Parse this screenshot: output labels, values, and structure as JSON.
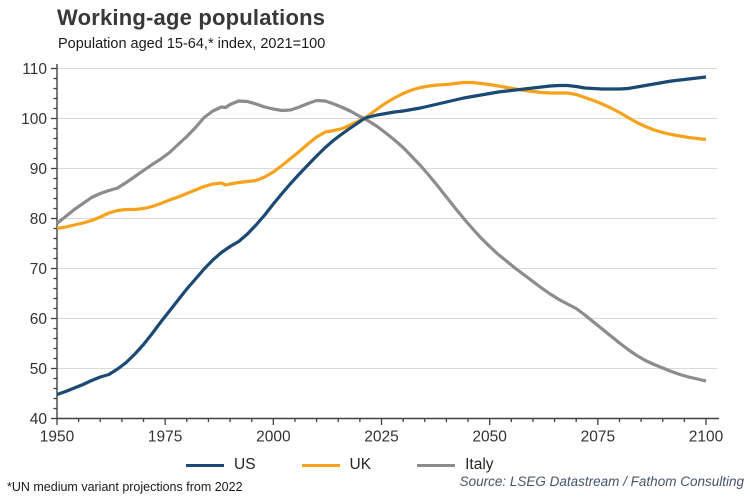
{
  "header": {
    "title": "Working-age populations",
    "subtitle": "Population aged 15-64,* index, 2021=100"
  },
  "footer": {
    "footnote": "*UN medium variant projections from 2022",
    "source": "Source: LSEG Datastream / Fathom Consulting"
  },
  "colors": {
    "us_line": "#1A4A73",
    "uk_line": "#F7A21B",
    "italy_line": "#8C8C8C",
    "grid": "#D9D9D9",
    "axis": "#404040",
    "tick_text": "#333333",
    "title_text": "#383838",
    "source_text": "#44546A"
  },
  "chart_data": {
    "type": "line",
    "title": "Working-age populations",
    "subtitle": "Population aged 15-64,* index, 2021=100",
    "xlabel": "",
    "ylabel": "",
    "xlim": [
      1950,
      2102
    ],
    "ylim": [
      40,
      110
    ],
    "x_ticks": [
      1950,
      1975,
      2000,
      2025,
      2050,
      2075,
      2100
    ],
    "x_minor_step": 5,
    "y_ticks": [
      40,
      50,
      60,
      70,
      80,
      90,
      100,
      110
    ],
    "y_minor_step": 2,
    "grid": "horizontal",
    "legend_position": "bottom",
    "series": [
      {
        "name": "US",
        "color": "#1A4A73",
        "points": [
          [
            1950,
            44.8
          ],
          [
            1952,
            45.4
          ],
          [
            1954,
            46.1
          ],
          [
            1956,
            46.8
          ],
          [
            1958,
            47.6
          ],
          [
            1960,
            48.3
          ],
          [
            1962,
            48.8
          ],
          [
            1964,
            49.9
          ],
          [
            1966,
            51.2
          ],
          [
            1968,
            52.9
          ],
          [
            1970,
            54.8
          ],
          [
            1972,
            57
          ],
          [
            1974,
            59.3
          ],
          [
            1976,
            61.5
          ],
          [
            1978,
            63.7
          ],
          [
            1980,
            65.9
          ],
          [
            1982,
            67.9
          ],
          [
            1984,
            69.9
          ],
          [
            1986,
            71.7
          ],
          [
            1988,
            73.2
          ],
          [
            1990,
            74.4
          ],
          [
            1992,
            75.4
          ],
          [
            1994,
            76.9
          ],
          [
            1996,
            78.7
          ],
          [
            1998,
            80.7
          ],
          [
            2000,
            82.9
          ],
          [
            2002,
            85
          ],
          [
            2004,
            87
          ],
          [
            2006,
            88.9
          ],
          [
            2008,
            90.7
          ],
          [
            2010,
            92.5
          ],
          [
            2012,
            94.2
          ],
          [
            2014,
            95.7
          ],
          [
            2016,
            97
          ],
          [
            2018,
            98.2
          ],
          [
            2020,
            99.4
          ],
          [
            2021,
            100
          ],
          [
            2022,
            100.3
          ],
          [
            2024,
            100.7
          ],
          [
            2026,
            101
          ],
          [
            2028,
            101.3
          ],
          [
            2030,
            101.5
          ],
          [
            2032,
            101.8
          ],
          [
            2034,
            102.1
          ],
          [
            2036,
            102.5
          ],
          [
            2038,
            102.9
          ],
          [
            2040,
            103.3
          ],
          [
            2042,
            103.7
          ],
          [
            2044,
            104.1
          ],
          [
            2046,
            104.4
          ],
          [
            2048,
            104.7
          ],
          [
            2050,
            105
          ],
          [
            2052,
            105.3
          ],
          [
            2054,
            105.5
          ],
          [
            2056,
            105.7
          ],
          [
            2058,
            105.9
          ],
          [
            2060,
            106.1
          ],
          [
            2062,
            106.3
          ],
          [
            2064,
            106.5
          ],
          [
            2066,
            106.6
          ],
          [
            2068,
            106.6
          ],
          [
            2070,
            106.4
          ],
          [
            2072,
            106.1
          ],
          [
            2074,
            106
          ],
          [
            2076,
            105.9
          ],
          [
            2078,
            105.9
          ],
          [
            2080,
            105.9
          ],
          [
            2082,
            106
          ],
          [
            2084,
            106.3
          ],
          [
            2086,
            106.6
          ],
          [
            2088,
            106.9
          ],
          [
            2090,
            107.2
          ],
          [
            2092,
            107.5
          ],
          [
            2094,
            107.7
          ],
          [
            2096,
            107.9
          ],
          [
            2098,
            108.1
          ],
          [
            2100,
            108.3
          ]
        ]
      },
      {
        "name": "UK",
        "color": "#F7A21B",
        "points": [
          [
            1950,
            78
          ],
          [
            1952,
            78.3
          ],
          [
            1954,
            78.7
          ],
          [
            1956,
            79.1
          ],
          [
            1958,
            79.6
          ],
          [
            1960,
            80.3
          ],
          [
            1962,
            81.1
          ],
          [
            1964,
            81.6
          ],
          [
            1966,
            81.8
          ],
          [
            1968,
            81.8
          ],
          [
            1970,
            82
          ],
          [
            1972,
            82.4
          ],
          [
            1974,
            83
          ],
          [
            1976,
            83.7
          ],
          [
            1978,
            84.3
          ],
          [
            1980,
            85
          ],
          [
            1982,
            85.7
          ],
          [
            1984,
            86.4
          ],
          [
            1986,
            86.9
          ],
          [
            1988,
            87.1
          ],
          [
            1989,
            86.7
          ],
          [
            1990,
            86.9
          ],
          [
            1992,
            87.2
          ],
          [
            1994,
            87.4
          ],
          [
            1996,
            87.6
          ],
          [
            1998,
            88.3
          ],
          [
            2000,
            89.3
          ],
          [
            2002,
            90.6
          ],
          [
            2004,
            92
          ],
          [
            2006,
            93.4
          ],
          [
            2008,
            94.9
          ],
          [
            2010,
            96.3
          ],
          [
            2012,
            97.3
          ],
          [
            2014,
            97.6
          ],
          [
            2016,
            98
          ],
          [
            2018,
            98.8
          ],
          [
            2020,
            99.6
          ],
          [
            2021,
            100
          ],
          [
            2022,
            100.6
          ],
          [
            2024,
            101.9
          ],
          [
            2026,
            103.1
          ],
          [
            2028,
            104.1
          ],
          [
            2030,
            105
          ],
          [
            2032,
            105.7
          ],
          [
            2034,
            106.2
          ],
          [
            2036,
            106.5
          ],
          [
            2038,
            106.7
          ],
          [
            2040,
            106.8
          ],
          [
            2042,
            107
          ],
          [
            2044,
            107.2
          ],
          [
            2046,
            107.2
          ],
          [
            2048,
            107
          ],
          [
            2050,
            106.8
          ],
          [
            2052,
            106.5
          ],
          [
            2054,
            106.2
          ],
          [
            2056,
            105.9
          ],
          [
            2058,
            105.6
          ],
          [
            2060,
            105.4
          ],
          [
            2062,
            105.2
          ],
          [
            2064,
            105.1
          ],
          [
            2066,
            105.1
          ],
          [
            2068,
            105.1
          ],
          [
            2070,
            104.8
          ],
          [
            2072,
            104.2
          ],
          [
            2074,
            103.6
          ],
          [
            2076,
            102.9
          ],
          [
            2078,
            102.1
          ],
          [
            2080,
            101.2
          ],
          [
            2082,
            100.2
          ],
          [
            2084,
            99.2
          ],
          [
            2086,
            98.4
          ],
          [
            2088,
            97.7
          ],
          [
            2090,
            97.2
          ],
          [
            2092,
            96.8
          ],
          [
            2094,
            96.5
          ],
          [
            2096,
            96.2
          ],
          [
            2098,
            96
          ],
          [
            2100,
            95.8
          ]
        ]
      },
      {
        "name": "Italy",
        "color": "#8C8C8C",
        "points": [
          [
            1950,
            79
          ],
          [
            1952,
            80.4
          ],
          [
            1954,
            81.8
          ],
          [
            1956,
            83
          ],
          [
            1958,
            84.2
          ],
          [
            1960,
            85
          ],
          [
            1962,
            85.6
          ],
          [
            1964,
            86.1
          ],
          [
            1966,
            87.2
          ],
          [
            1968,
            88.4
          ],
          [
            1970,
            89.6
          ],
          [
            1972,
            90.8
          ],
          [
            1974,
            91.9
          ],
          [
            1976,
            93.2
          ],
          [
            1978,
            94.8
          ],
          [
            1980,
            96.4
          ],
          [
            1982,
            98.2
          ],
          [
            1984,
            100.2
          ],
          [
            1986,
            101.5
          ],
          [
            1988,
            102.3
          ],
          [
            1989,
            102.2
          ],
          [
            1990,
            102.8
          ],
          [
            1992,
            103.5
          ],
          [
            1994,
            103.4
          ],
          [
            1996,
            102.9
          ],
          [
            1998,
            102.3
          ],
          [
            2000,
            101.9
          ],
          [
            2002,
            101.6
          ],
          [
            2004,
            101.7
          ],
          [
            2006,
            102.3
          ],
          [
            2008,
            103
          ],
          [
            2010,
            103.6
          ],
          [
            2012,
            103.5
          ],
          [
            2014,
            102.9
          ],
          [
            2016,
            102.2
          ],
          [
            2018,
            101.4
          ],
          [
            2020,
            100.4
          ],
          [
            2021,
            100
          ],
          [
            2022,
            99.5
          ],
          [
            2024,
            98.4
          ],
          [
            2026,
            97.1
          ],
          [
            2028,
            95.7
          ],
          [
            2030,
            94.2
          ],
          [
            2032,
            92.4
          ],
          [
            2034,
            90.6
          ],
          [
            2036,
            88.6
          ],
          [
            2038,
            86.5
          ],
          [
            2040,
            84.3
          ],
          [
            2042,
            82.1
          ],
          [
            2044,
            80
          ],
          [
            2046,
            78
          ],
          [
            2048,
            76.1
          ],
          [
            2050,
            74.4
          ],
          [
            2052,
            72.8
          ],
          [
            2054,
            71.4
          ],
          [
            2056,
            70
          ],
          [
            2058,
            68.7
          ],
          [
            2060,
            67.4
          ],
          [
            2062,
            66.1
          ],
          [
            2064,
            64.9
          ],
          [
            2066,
            63.8
          ],
          [
            2068,
            62.9
          ],
          [
            2070,
            62
          ],
          [
            2072,
            60.7
          ],
          [
            2074,
            59.3
          ],
          [
            2076,
            57.9
          ],
          [
            2078,
            56.5
          ],
          [
            2080,
            55.1
          ],
          [
            2082,
            53.8
          ],
          [
            2084,
            52.6
          ],
          [
            2086,
            51.6
          ],
          [
            2088,
            50.8
          ],
          [
            2090,
            50.1
          ],
          [
            2092,
            49.4
          ],
          [
            2094,
            48.8
          ],
          [
            2096,
            48.3
          ],
          [
            2098,
            47.9
          ],
          [
            2100,
            47.5
          ]
        ]
      }
    ]
  }
}
